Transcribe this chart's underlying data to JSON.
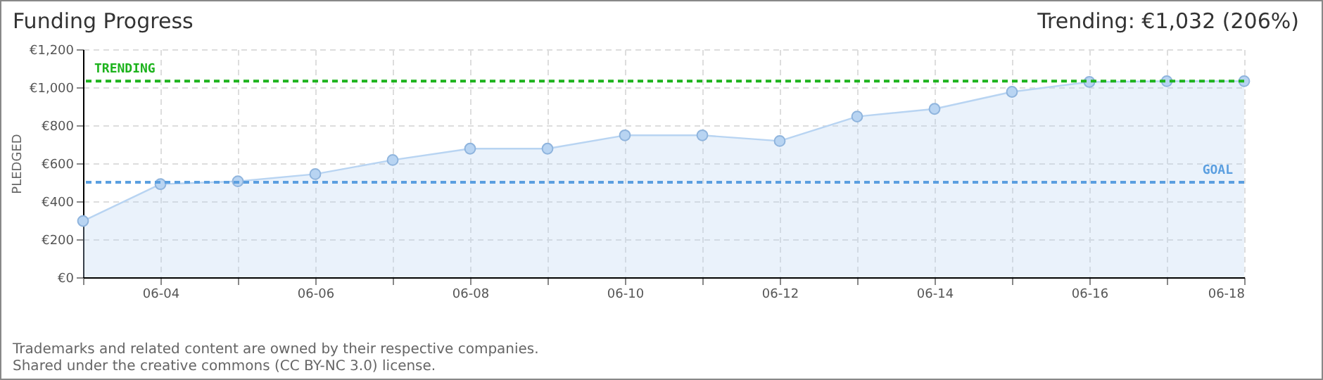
{
  "chart_data": {
    "type": "area",
    "title": "Funding Progress",
    "ylabel": "PLEDGED",
    "annotations": [
      "Trending:  €1,032 (206%)",
      "Trademarks and related content are owned by their respective companies.",
      "Shared under the creative commons (CC BY-NC 3.0) license."
    ],
    "x": [
      "--06-03",
      "--06-04",
      "--06-05",
      "--06-06",
      "--06-07",
      "--06-08",
      "--06-09",
      "--06-10",
      "--06-11",
      "--06-12",
      "--06-13",
      "--06-14",
      "--06-15",
      "--06-16",
      "--06-17",
      "--06-18"
    ],
    "series": [
      {
        "color": "#b8d4f2",
        "values": [
          296,
          490,
          505,
          543,
          617,
          677,
          677,
          747,
          747,
          717,
          846,
          886,
          976,
          1028,
          1032,
          1032
        ]
      }
    ],
    "xlim": [
      "--06-03",
      "--06-18"
    ],
    "xticks": [
      {
        "value": "--06-03",
        "label": null
      },
      {
        "value": "--06-04",
        "label": "06-04"
      },
      {
        "value": "--06-05",
        "label": null
      },
      {
        "value": "--06-06",
        "label": "06-06"
      },
      {
        "value": "--06-07",
        "label": null
      },
      {
        "value": "--06-08",
        "label": "06-08"
      },
      {
        "value": "--06-09",
        "label": null
      },
      {
        "value": "--06-10",
        "label": "06-10"
      },
      {
        "value": "--06-11",
        "label": null
      },
      {
        "value": "--06-12",
        "label": "06-12"
      },
      {
        "value": "--06-13",
        "label": null
      },
      {
        "value": "--06-14",
        "label": "06-14"
      },
      {
        "value": "--06-15",
        "label": null
      },
      {
        "value": "--06-16",
        "label": "06-16"
      },
      {
        "value": "--06-17",
        "label": null
      },
      {
        "value": "--06-18",
        "label": "06-18"
      }
    ],
    "ylim": [
      0,
      1200
    ],
    "yticks": [
      {
        "value": 0,
        "label": "€0"
      },
      {
        "value": 200,
        "label": "€200"
      },
      {
        "value": 400,
        "label": "€400"
      },
      {
        "value": 600,
        "label": "€600"
      },
      {
        "value": 800,
        "label": "€800"
      },
      {
        "value": 1000,
        "label": "€1,000"
      },
      {
        "value": 1200,
        "label": "€1,200"
      }
    ],
    "ref_lines": [
      {
        "axis": "y",
        "value": 1032,
        "label": "TRENDING",
        "color": "#1db31d",
        "line_style": "dashed"
      },
      {
        "axis": "y",
        "value": 500,
        "label": "GOAL",
        "color": "#5b9fe0",
        "line_style": "dashed"
      }
    ],
    "grid": true,
    "marker": "circle",
    "line_style": "solid"
  }
}
